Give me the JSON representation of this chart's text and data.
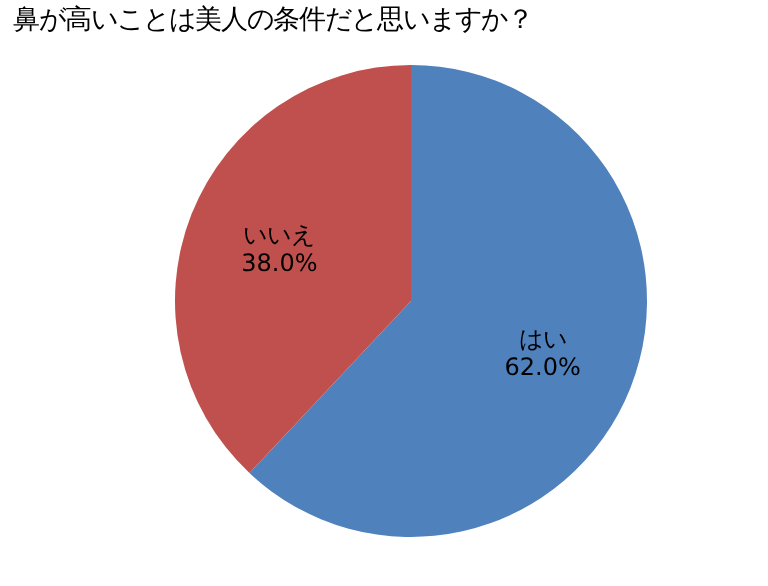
{
  "chart_data": {
    "type": "pie",
    "title": "鼻が高いことは美人の条件だと思いますか？",
    "categories": [
      "はい",
      "いいえ"
    ],
    "values": [
      62.0,
      38.0
    ],
    "value_labels": [
      "62.0%",
      "38.0%"
    ],
    "colors": [
      "#4f81bd",
      "#c0504d"
    ],
    "legend": false
  }
}
